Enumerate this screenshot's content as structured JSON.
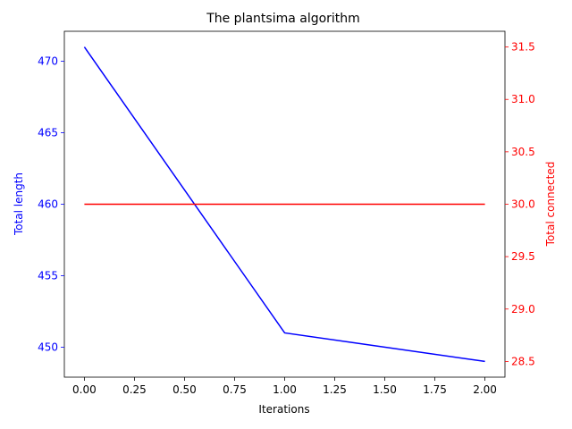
{
  "chart_data": {
    "type": "line",
    "title": "The plantsima algorithm",
    "xlabel": "Iterations",
    "x": [
      0,
      1,
      2
    ],
    "xlim": [
      -0.1,
      2.1
    ],
    "xticks": [
      0.0,
      0.25,
      0.5,
      0.75,
      1.0,
      1.25,
      1.5,
      1.75,
      2.0
    ],
    "xtick_labels": [
      "0.00",
      "0.25",
      "0.50",
      "0.75",
      "1.00",
      "1.25",
      "1.50",
      "1.75",
      "2.00"
    ],
    "y_left": {
      "label": "Total length",
      "color": "#0000ff",
      "lim": [
        447.9,
        472.1
      ],
      "ticks": [
        450,
        455,
        460,
        465,
        470
      ],
      "tick_labels": [
        "450",
        "455",
        "460",
        "465",
        "470"
      ]
    },
    "y_right": {
      "label": "Total connected",
      "color": "#ff0000",
      "lim": [
        28.35,
        31.65
      ],
      "ticks": [
        28.5,
        29.0,
        29.5,
        30.0,
        30.5,
        31.0,
        31.5
      ],
      "tick_labels": [
        "28.5",
        "29.0",
        "29.5",
        "30.0",
        "30.5",
        "31.0",
        "31.5"
      ]
    },
    "series": [
      {
        "axis": "left",
        "color": "#0000ff",
        "values": [
          471,
          451,
          449
        ]
      },
      {
        "axis": "right",
        "color": "#ff0000",
        "values": [
          30,
          30,
          30
        ]
      }
    ],
    "grid": false,
    "legend": "none"
  }
}
